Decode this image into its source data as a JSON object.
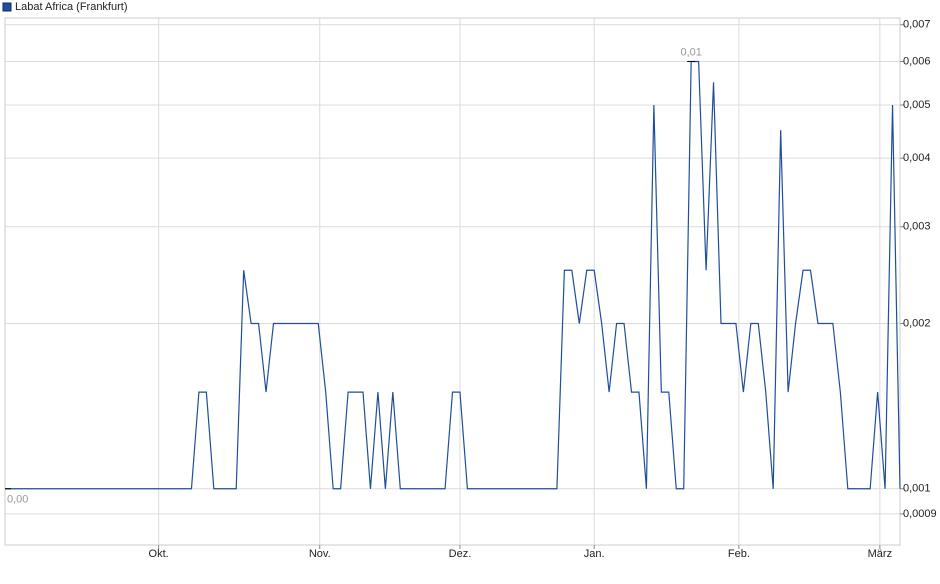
{
  "chart_data": {
    "type": "line",
    "log_y": true,
    "grid": true,
    "y_axis_side": "right",
    "series": [
      {
        "name": "Labat Africa (Frankfurt)",
        "color": "#1f4e9c",
        "values": [
          0.001,
          0.001,
          0.001,
          0.001,
          0.001,
          0.001,
          0.001,
          0.001,
          0.001,
          0.001,
          0.001,
          0.001,
          0.001,
          0.001,
          0.001,
          0.001,
          0.001,
          0.001,
          0.001,
          0.001,
          0.001,
          0.001,
          0.001,
          0.001,
          0.001,
          0.001,
          0.0015,
          0.0015,
          0.001,
          0.001,
          0.001,
          0.001,
          0.0025,
          0.002,
          0.002,
          0.0015,
          0.002,
          0.002,
          0.002,
          0.002,
          0.002,
          0.002,
          0.002,
          0.0015,
          0.001,
          0.001,
          0.0015,
          0.0015,
          0.0015,
          0.001,
          0.0015,
          0.001,
          0.0015,
          0.001,
          0.001,
          0.001,
          0.001,
          0.001,
          0.001,
          0.001,
          0.0015,
          0.0015,
          0.001,
          0.001,
          0.001,
          0.001,
          0.001,
          0.001,
          0.001,
          0.001,
          0.001,
          0.001,
          0.001,
          0.001,
          0.001,
          0.0025,
          0.0025,
          0.002,
          0.0025,
          0.0025,
          0.002,
          0.0015,
          0.002,
          0.002,
          0.0015,
          0.0015,
          0.001,
          0.005,
          0.0015,
          0.0015,
          0.001,
          0.001,
          0.006,
          0.006,
          0.0025,
          0.0055,
          0.002,
          0.002,
          0.002,
          0.0015,
          0.002,
          0.002,
          0.0015,
          0.001,
          0.0045,
          0.0015,
          0.002,
          0.0025,
          0.0025,
          0.002,
          0.002,
          0.002,
          0.0015,
          0.001,
          0.001,
          0.001,
          0.001,
          0.0015,
          0.001,
          0.005,
          0.001
        ]
      }
    ],
    "x": [
      0,
      1,
      2,
      3,
      4,
      5,
      6,
      7,
      8,
      9,
      10,
      11,
      12,
      13,
      14,
      15,
      16,
      17,
      18,
      19,
      20,
      21,
      22,
      23,
      24,
      25,
      26,
      27,
      28,
      29,
      30,
      31,
      32,
      33,
      34,
      35,
      36,
      37,
      38,
      39,
      40,
      41,
      42,
      43,
      44,
      45,
      46,
      47,
      48,
      49,
      50,
      51,
      52,
      53,
      54,
      55,
      56,
      57,
      58,
      59,
      60,
      61,
      62,
      63,
      64,
      65,
      66,
      67,
      68,
      69,
      70,
      71,
      72,
      73,
      74,
      75,
      76,
      77,
      78,
      79,
      80,
      81,
      82,
      83,
      84,
      85,
      86,
      87,
      88,
      89,
      90,
      91,
      92,
      93,
      94,
      95,
      96,
      97,
      98,
      99,
      100,
      101,
      102,
      103,
      104,
      105,
      106,
      107,
      108,
      109,
      110,
      111,
      112,
      113,
      114,
      115,
      116,
      117,
      118,
      119,
      120
    ],
    "xlim": [
      0,
      120
    ],
    "xticks": [
      {
        "value": 20.6,
        "label": "Okt."
      },
      {
        "value": 42.2,
        "label": "Nov."
      },
      {
        "value": 61,
        "label": "Dez."
      },
      {
        "value": 79,
        "label": "Jan."
      },
      {
        "value": 98.4,
        "label": "Feb."
      },
      {
        "value": 117.3,
        "label": "März"
      }
    ],
    "ylim": [
      0.00079,
      0.0072
    ],
    "yticks": [
      {
        "value": 0.0009,
        "label": "0,0009"
      },
      {
        "value": 0.001,
        "label": "0,001"
      },
      {
        "value": 0.002,
        "label": "0,002"
      },
      {
        "value": 0.003,
        "label": "0,003"
      },
      {
        "value": 0.004,
        "label": "0,004"
      },
      {
        "value": 0.005,
        "label": "0,005"
      },
      {
        "value": 0.006,
        "label": "0,006"
      },
      {
        "value": 0.007,
        "label": "0,007"
      }
    ],
    "max_label": "0,01",
    "min_label": "0,00"
  }
}
